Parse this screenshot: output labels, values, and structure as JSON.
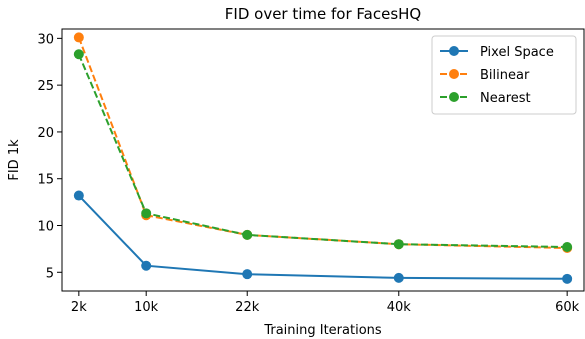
{
  "chart_data": {
    "type": "line",
    "title": "FID over time for FacesHQ",
    "xlabel": "Training Iterations",
    "ylabel": "FID 1k",
    "x": [
      2000,
      10000,
      22000,
      40000,
      60000
    ],
    "x_tick_labels": [
      "2k",
      "10k",
      "22k",
      "40k",
      "60k"
    ],
    "y_ticks": [
      5,
      10,
      15,
      20,
      25,
      30
    ],
    "xlim": [
      0,
      62000
    ],
    "ylim": [
      3,
      31
    ],
    "legend_position": "top-right",
    "grid": false,
    "series": [
      {
        "name": "Pixel Space",
        "values": [
          13.2,
          5.7,
          4.8,
          4.4,
          4.3
        ],
        "color": "#1f77b4",
        "dashed": false
      },
      {
        "name": "Bilinear",
        "values": [
          30.1,
          11.1,
          9.0,
          8.0,
          7.6
        ],
        "color": "#ff7f0e",
        "dashed": true
      },
      {
        "name": "Nearest",
        "values": [
          28.3,
          11.3,
          9.0,
          8.0,
          7.7
        ],
        "color": "#2ca02c",
        "dashed": true
      }
    ]
  }
}
